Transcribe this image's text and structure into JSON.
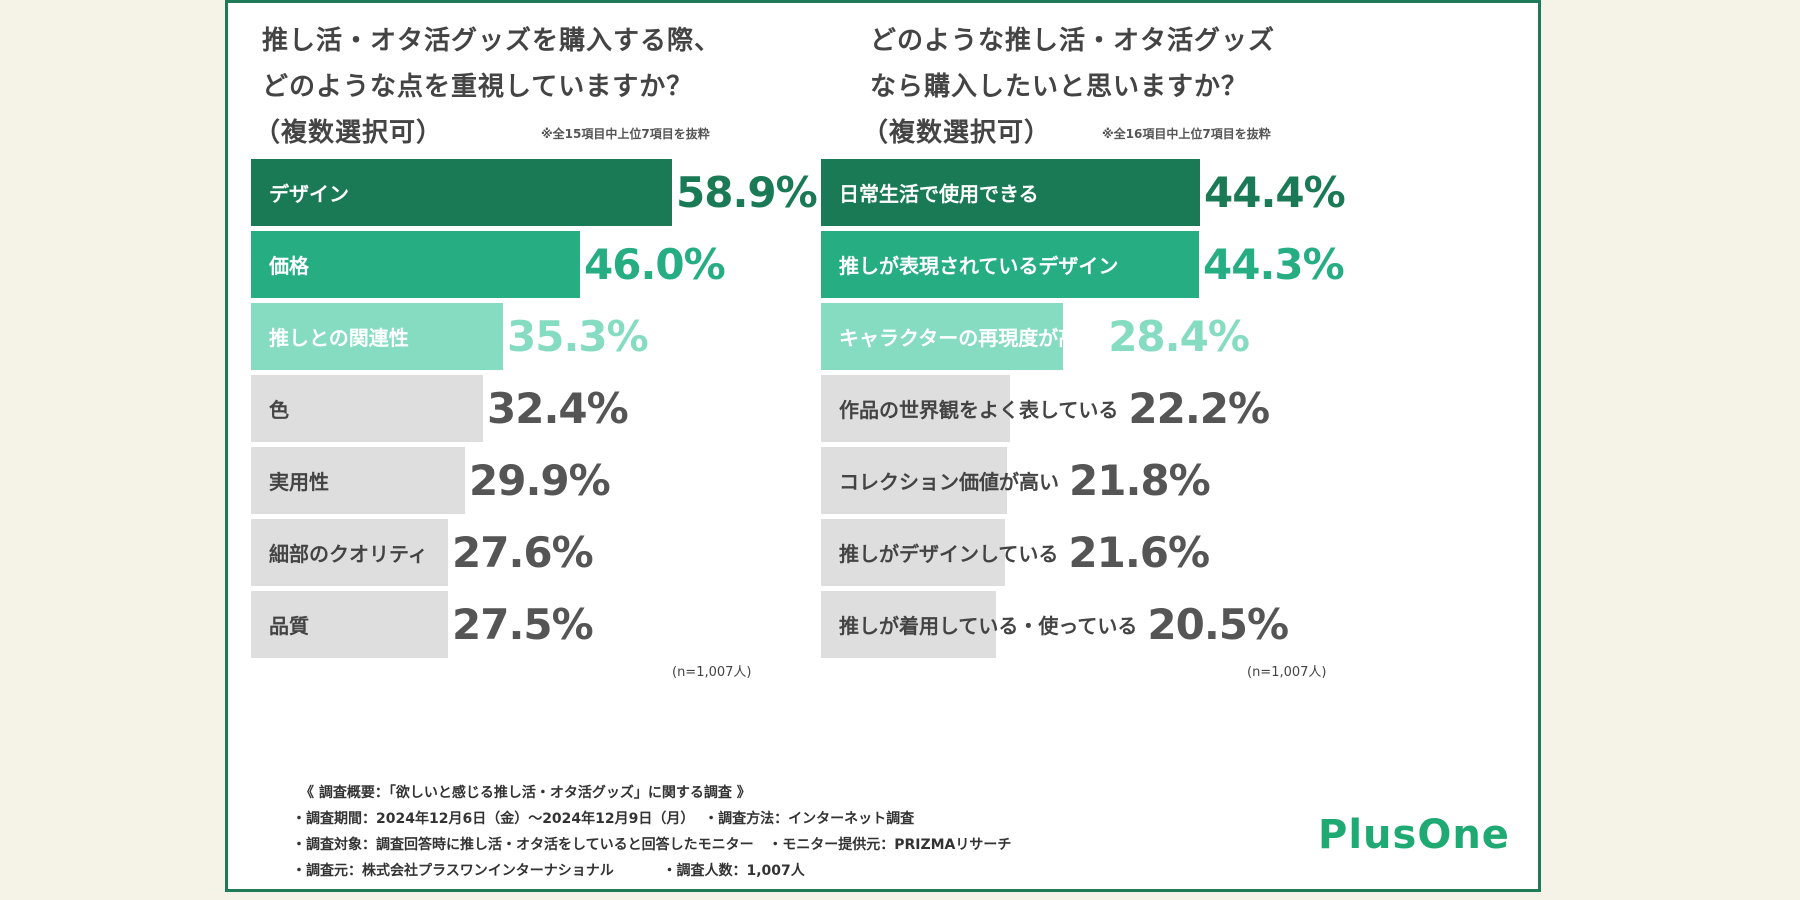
{
  "colors": {
    "dark": "#1b7a56",
    "mid": "#26ae82",
    "light": "#86dcc0",
    "gray": "#dedede",
    "border": "#1e7a57"
  },
  "chart_data": [
    {
      "type": "bar",
      "orientation": "horizontal",
      "title_lines": [
        "推し活・オタ活グッズを購入する際、",
        "どのような点を重視していますか？",
        "（複数選択可）"
      ],
      "note": "※全15項目中上位7項目を抜粋",
      "sample": "(n=1,007人)",
      "unit": "%",
      "categories": [
        "デザイン",
        "価格",
        "推しとの関連性",
        "色",
        "実用性",
        "細部のクオリティ",
        "品質"
      ],
      "values": [
        58.9,
        46.0,
        35.3,
        32.4,
        29.9,
        27.6,
        27.5
      ],
      "labels": [
        "58.9%",
        "46.0%",
        "35.3%",
        "32.4%",
        "29.9%",
        "27.6%",
        "27.5%"
      ],
      "bar_colors": [
        "dark",
        "mid",
        "light",
        "gray",
        "gray",
        "gray",
        "gray"
      ]
    },
    {
      "type": "bar",
      "orientation": "horizontal",
      "title_lines": [
        "どのような推し活・オタ活グッズ",
        "なら購入したいと思いますか？",
        "（複数選択可）"
      ],
      "note": "※全16項目中上位7項目を抜粋",
      "sample": "(n=1,007人)",
      "unit": "%",
      "categories": [
        "日常生活で使用できる",
        "推しが表現されているデザイン",
        "キャラクターの再現度が高い",
        "作品の世界観をよく表している",
        "コレクション価値が高い",
        "推しがデザインしている",
        "推しが着用している・使っている"
      ],
      "values": [
        44.4,
        44.3,
        28.4,
        22.2,
        21.8,
        21.6,
        20.5
      ],
      "labels": [
        "44.4%",
        "44.3%",
        "28.4%",
        "22.2%",
        "21.8%",
        "21.6%",
        "20.5%"
      ],
      "bar_colors": [
        "dark",
        "mid",
        "light",
        "gray",
        "gray",
        "gray",
        "gray"
      ]
    }
  ],
  "footer": {
    "lines": [
      "《 調査概要：「欲しいと感じる推し活・オタ活グッズ」に関する調査 》",
      "・調査期間：2024年12月6日（金）～2024年12月9日（月）  ・調査方法：インターネット調査",
      "・調査対象：調査回答時に推し活・オタ活をしていると回答したモニター   ・モニター提供元：PRIZMAリサーチ",
      "・調査元：株式会社プラスワンインターナショナル          ・調査人数：1,007人"
    ]
  },
  "logo": "PlusOne"
}
